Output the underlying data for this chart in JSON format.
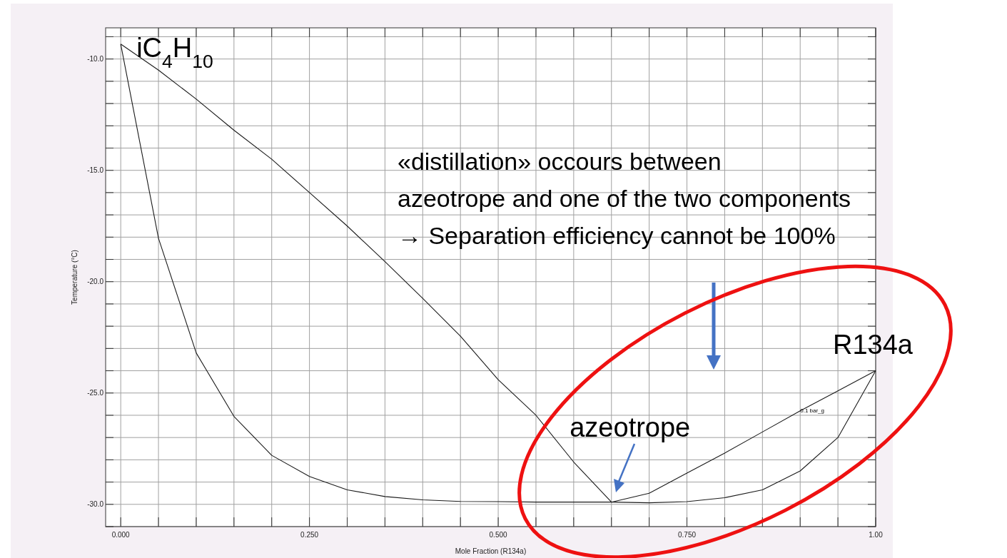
{
  "chart_data": {
    "type": "line",
    "xlabel": "Mole Fraction (R134a)",
    "ylabel": "Temperature (°C)",
    "xlim": [
      -0.02,
      1.0
    ],
    "ylim": [
      -31,
      -8.6
    ],
    "xticks": [
      {
        "value": 0,
        "label": "0.000"
      },
      {
        "value": 0.05,
        "label": null
      },
      {
        "value": 0.1,
        "label": null
      },
      {
        "value": 0.15,
        "label": null
      },
      {
        "value": 0.2,
        "label": null
      },
      {
        "value": 0.25,
        "label": "0.250"
      },
      {
        "value": 0.3,
        "label": null
      },
      {
        "value": 0.35,
        "label": null
      },
      {
        "value": 0.4,
        "label": null
      },
      {
        "value": 0.45,
        "label": null
      },
      {
        "value": 0.5,
        "label": "0.500"
      },
      {
        "value": 0.55,
        "label": null
      },
      {
        "value": 0.6,
        "label": null
      },
      {
        "value": 0.65,
        "label": null
      },
      {
        "value": 0.7,
        "label": null
      },
      {
        "value": 0.75,
        "label": "0.750"
      },
      {
        "value": 0.8,
        "label": null
      },
      {
        "value": 0.85,
        "label": null
      },
      {
        "value": 0.9,
        "label": null
      },
      {
        "value": 0.95,
        "label": null
      },
      {
        "value": 1.0,
        "label": "1.00"
      }
    ],
    "yticks": [
      {
        "value": -31,
        "label": null
      },
      {
        "value": -30,
        "label": "-30.0"
      },
      {
        "value": -29,
        "label": null
      },
      {
        "value": -28,
        "label": null
      },
      {
        "value": -27,
        "label": null
      },
      {
        "value": -26,
        "label": null
      },
      {
        "value": -25,
        "label": "-25.0"
      },
      {
        "value": -24,
        "label": null
      },
      {
        "value": -23,
        "label": null
      },
      {
        "value": -22,
        "label": null
      },
      {
        "value": -21,
        "label": null
      },
      {
        "value": -20,
        "label": "-20.0"
      },
      {
        "value": -19,
        "label": null
      },
      {
        "value": -18,
        "label": null
      },
      {
        "value": -17,
        "label": null
      },
      {
        "value": -16,
        "label": null
      },
      {
        "value": -15,
        "label": "-15.0"
      },
      {
        "value": -14,
        "label": null
      },
      {
        "value": -13,
        "label": null
      },
      {
        "value": -12,
        "label": null
      },
      {
        "value": -11,
        "label": null
      },
      {
        "value": -10,
        "label": "-10.0"
      },
      {
        "value": -9,
        "label": null
      }
    ],
    "grid": true,
    "marker": "none",
    "line_style": "solid",
    "x": [
      0,
      0.05,
      0.1,
      0.15,
      0.2,
      0.25,
      0.3,
      0.35,
      0.4,
      0.45,
      0.5,
      0.55,
      0.6,
      0.65,
      0.7,
      0.75,
      0.8,
      0.85,
      0.9,
      0.95,
      1.0
    ],
    "series": [
      {
        "color": "#1a1a1a",
        "values": [
          -9.33,
          -10.5,
          -11.8,
          -13.2,
          -14.5,
          -16.0,
          -17.5,
          -19.1,
          -20.75,
          -22.45,
          -24.4,
          -26.0,
          -28.1,
          -29.9,
          -29.5,
          -28.6,
          -27.7,
          -26.75,
          -25.8,
          -24.9,
          -24.0
        ]
      },
      {
        "color": "#1a1a1a",
        "values": [
          -9.33,
          -18.05,
          -23.2,
          -26.05,
          -27.8,
          -28.75,
          -29.35,
          -29.65,
          -29.8,
          -29.87,
          -29.88,
          -29.9,
          -29.9,
          -29.9,
          -29.93,
          -29.88,
          -29.7,
          -29.35,
          -28.5,
          -27.0,
          -24.0
        ]
      }
    ],
    "annotations": [
      {
        "text": "iC$_{4}$H$_{10}$",
        "x": 0,
        "y": -9.33
      },
      {
        "text": "R134a",
        "x": 1.0,
        "y": -24.0
      },
      {
        "text": "azeotrope",
        "x": 0.65,
        "y": -29.9
      },
      {
        "text": "0.1 bar_g",
        "x": 0.9,
        "y": -25.8
      },
      "«distillation» occours between",
      "azeotrope and one of the two components",
      "→ Separation efficiency cannot be 100%"
    ]
  }
}
